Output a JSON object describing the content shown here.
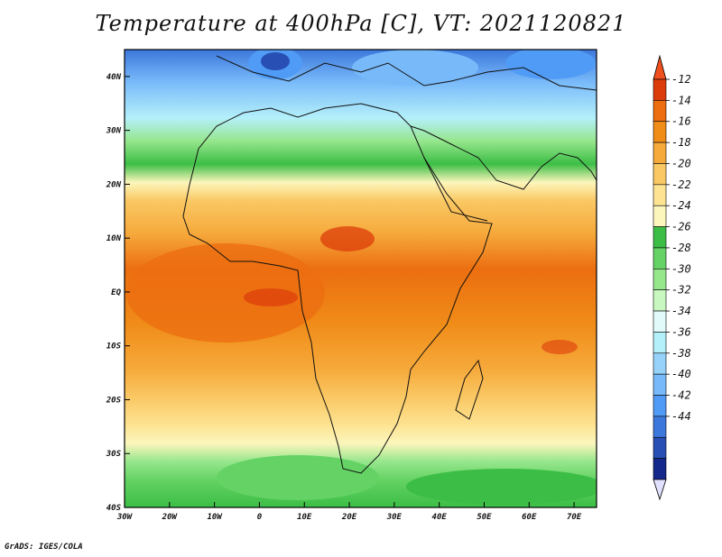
{
  "title": "Temperature at 400hPa [C], VT: 2021120821",
  "footer": "GrADS: IGES/COLA",
  "map": {
    "projection": "lat-lon",
    "lon_range": [
      -30,
      75
    ],
    "lat_range": [
      -40,
      45
    ],
    "x_ticks": [
      {
        "lon": -30,
        "label": "30W"
      },
      {
        "lon": -20,
        "label": "20W"
      },
      {
        "lon": -10,
        "label": "10W"
      },
      {
        "lon": 0,
        "label": "0"
      },
      {
        "lon": 10,
        "label": "10E"
      },
      {
        "lon": 20,
        "label": "20E"
      },
      {
        "lon": 30,
        "label": "30E"
      },
      {
        "lon": 40,
        "label": "40E"
      },
      {
        "lon": 50,
        "label": "50E"
      },
      {
        "lon": 60,
        "label": "60E"
      },
      {
        "lon": 70,
        "label": "70E"
      }
    ],
    "y_ticks": [
      {
        "lat": 40,
        "label": "40N"
      },
      {
        "lat": 30,
        "label": "30N"
      },
      {
        "lat": 20,
        "label": "20N"
      },
      {
        "lat": 10,
        "label": "10N"
      },
      {
        "lat": 0,
        "label": "EQ"
      },
      {
        "lat": -10,
        "label": "10S"
      },
      {
        "lat": -20,
        "label": "20S"
      },
      {
        "lat": -30,
        "label": "30S"
      },
      {
        "lat": -40,
        "label": "40S"
      }
    ]
  },
  "colorbar": {
    "bins": [
      {
        "color": "#dc3c0a",
        "label": "-12"
      },
      {
        "color": "#ec6e10",
        "label": "-14"
      },
      {
        "color": "#f08c18",
        "label": "-16"
      },
      {
        "color": "#f6aa3c",
        "label": "-18"
      },
      {
        "color": "#fac864",
        "label": "-20"
      },
      {
        "color": "#fde392",
        "label": "-22"
      },
      {
        "color": "#fcf6bc",
        "label": "-24"
      },
      {
        "color": "#3cbe46",
        "label": "-26"
      },
      {
        "color": "#64d264",
        "label": "-28"
      },
      {
        "color": "#96e68c",
        "label": "-30"
      },
      {
        "color": "#c8f8c0",
        "label": "-32"
      },
      {
        "color": "#e2fafa",
        "label": "-34"
      },
      {
        "color": "#b4f0fa",
        "label": "-36"
      },
      {
        "color": "#96d2fa",
        "label": "-38"
      },
      {
        "color": "#78b9fa",
        "label": "-40"
      },
      {
        "color": "#509bf5",
        "label": "-42"
      },
      {
        "color": "#3c78dc",
        "label": "-44"
      },
      {
        "color": "#2850b4",
        "label": ""
      },
      {
        "color": "#14288c",
        "label": ""
      }
    ],
    "over_color": "#f0501e",
    "under_color": "#e1e1ff"
  }
}
